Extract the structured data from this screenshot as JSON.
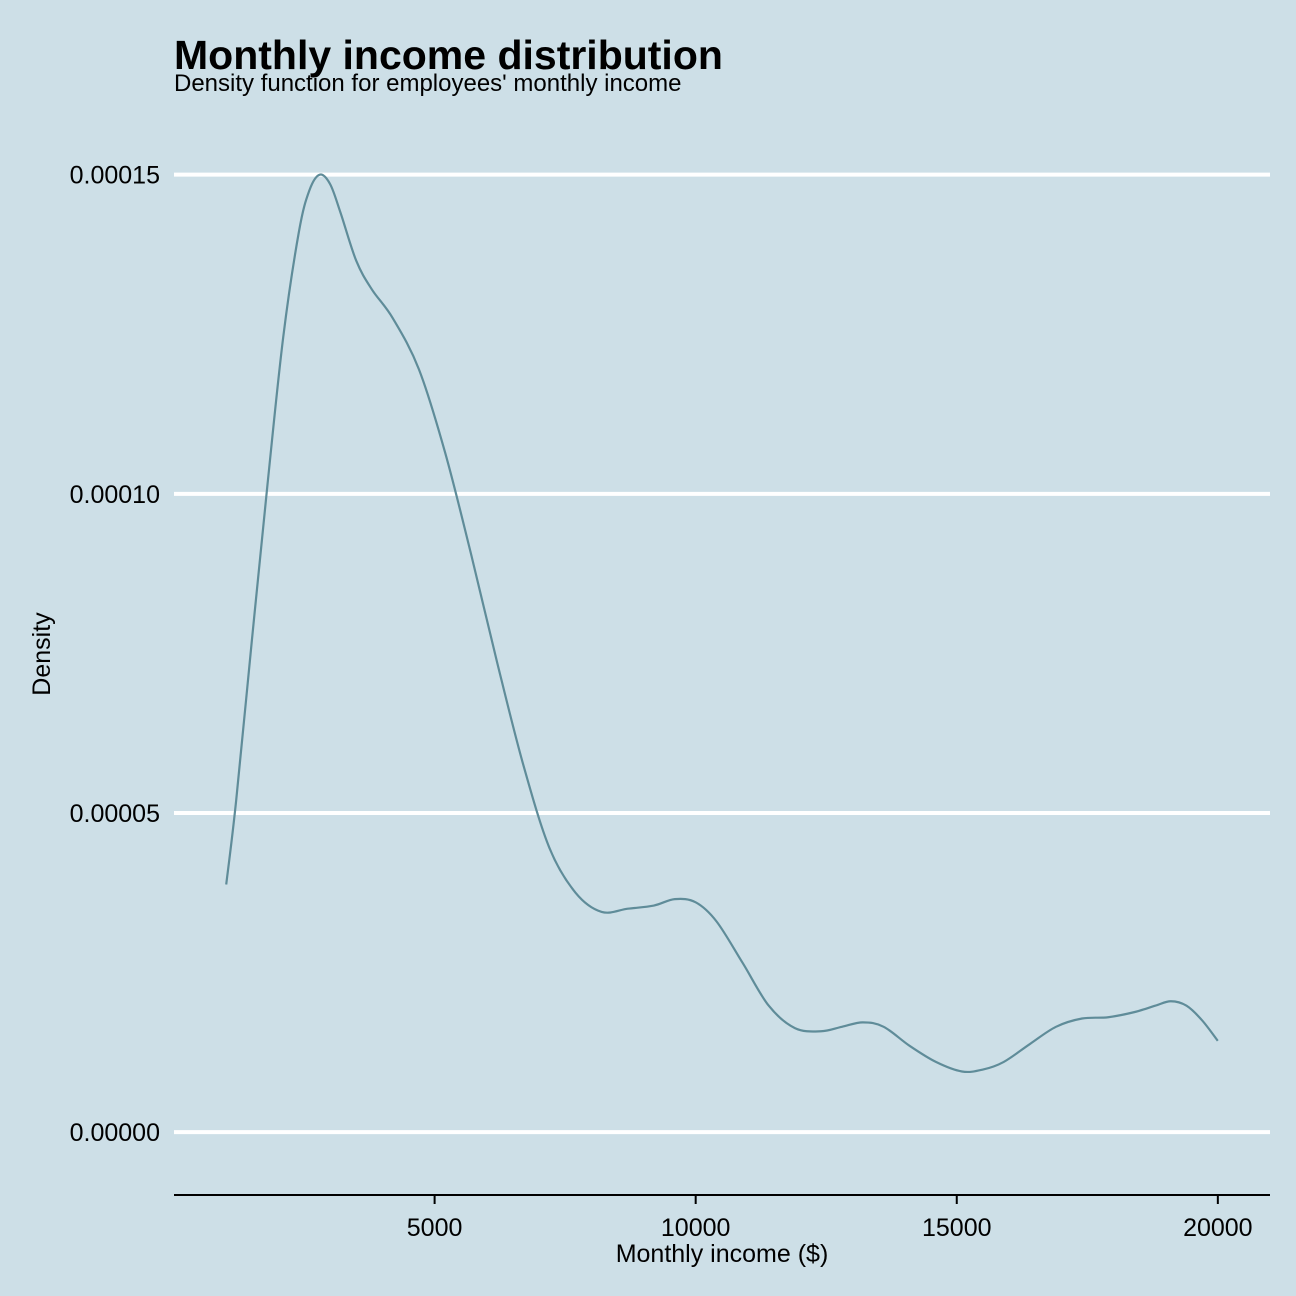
{
  "chart_data": {
    "type": "line",
    "title": "Monthly income distribution",
    "subtitle": "Density function for employees' monthly income",
    "xlabel": "Monthly income ($)",
    "ylabel": "Density",
    "xlim": [
      9,
      20999
    ],
    "ylim": [
      -7.5e-06,
      0.000157
    ],
    "x_ticks": [
      5000,
      10000,
      15000,
      20000
    ],
    "x_tick_labels": [
      "5000",
      "10000",
      "15000",
      "20000"
    ],
    "y_ticks": [
      0,
      5e-05,
      0.0001,
      0.00015
    ],
    "y_tick_labels": [
      "0.00000",
      "0.00005",
      "0.00010",
      "0.00015"
    ],
    "grid": "horizontal major",
    "background_color": "#cddfe7",
    "grid_color": "#ffffff",
    "series": [
      {
        "color": "#5f8c99",
        "x": [
          1009,
          1200,
          1500,
          1800,
          2100,
          2400,
          2600,
          2800,
          3000,
          3200,
          3500,
          3800,
          4200,
          4700,
          5200,
          5700,
          6200,
          6700,
          7200,
          7700,
          8200,
          8700,
          9200,
          9600,
          10000,
          10400,
          10900,
          11400,
          11900,
          12400,
          12800,
          13200,
          13600,
          14100,
          14600,
          15100,
          15500,
          15900,
          16400,
          16900,
          17400,
          17900,
          18400,
          18800,
          19100,
          19400,
          19700,
          19999
        ],
        "y": [
          3.88e-05,
          5.2e-05,
          7.7e-05,
          0.0001015,
          0.0001245,
          0.000141,
          0.0001475,
          0.00015,
          0.0001485,
          0.000144,
          0.0001365,
          0.000132,
          0.0001275,
          0.0001195,
          0.0001065,
          9.05e-05,
          7.35e-05,
          5.75e-05,
          4.45e-05,
          3.75e-05,
          3.45e-05,
          3.5e-05,
          3.55e-05,
          3.65e-05,
          3.6e-05,
          3.3e-05,
          2.65e-05,
          1.98e-05,
          1.63e-05,
          1.58e-05,
          1.65e-05,
          1.72e-05,
          1.65e-05,
          1.35e-05,
          1.1e-05,
          9.5e-06,
          9.8e-06,
          1.1e-05,
          1.38e-05,
          1.65e-05,
          1.78e-05,
          1.8e-05,
          1.88e-05,
          1.98e-05,
          2.05e-05,
          1.98e-05,
          1.75e-05,
          1.43e-05
        ]
      }
    ]
  }
}
